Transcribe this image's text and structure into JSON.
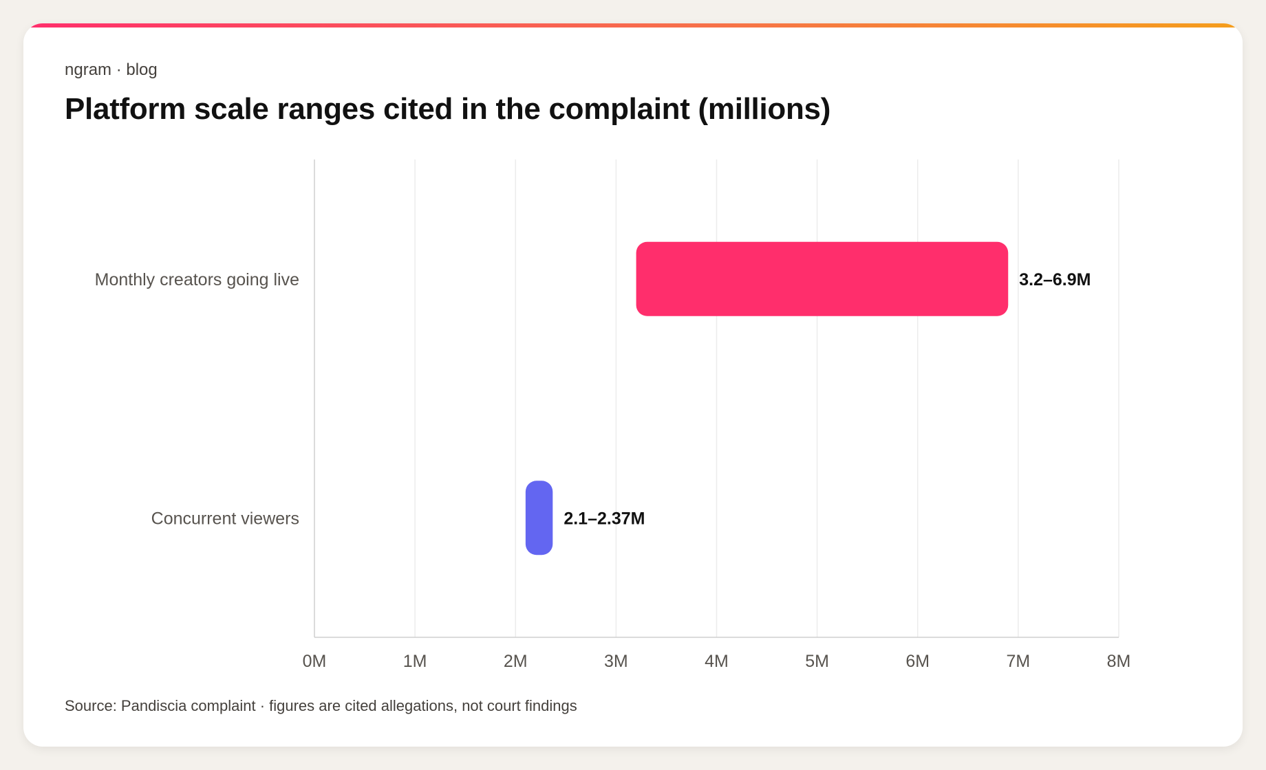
{
  "header": {
    "eyebrow": "ngram · blog",
    "title": "Platform scale ranges cited in the complaint (millions)"
  },
  "footer": {
    "source": "Source: Pandiscia complaint · figures are cited allegations, not court findings"
  },
  "chart_data": {
    "type": "bar",
    "orientation": "horizontal-range",
    "title": "Platform scale ranges cited in the complaint (millions)",
    "xlabel": "",
    "ylabel": "",
    "xlim": [
      0,
      8
    ],
    "grid": true,
    "x_ticks": [
      "0M",
      "1M",
      "2M",
      "3M",
      "4M",
      "5M",
      "6M",
      "7M",
      "8M"
    ],
    "x_tick_values": [
      0,
      1,
      2,
      3,
      4,
      5,
      6,
      7,
      8
    ],
    "categories": [
      "Monthly creators going live",
      "Concurrent viewers"
    ],
    "ranges": [
      {
        "category": "Monthly creators going live",
        "low": 3.2,
        "high": 6.9,
        "label": "3.2–6.9M",
        "color": "#ff2e6c"
      },
      {
        "category": "Concurrent viewers",
        "low": 2.1,
        "high": 2.37,
        "label": "2.1–2.37M",
        "color": "#6366f1"
      }
    ]
  }
}
